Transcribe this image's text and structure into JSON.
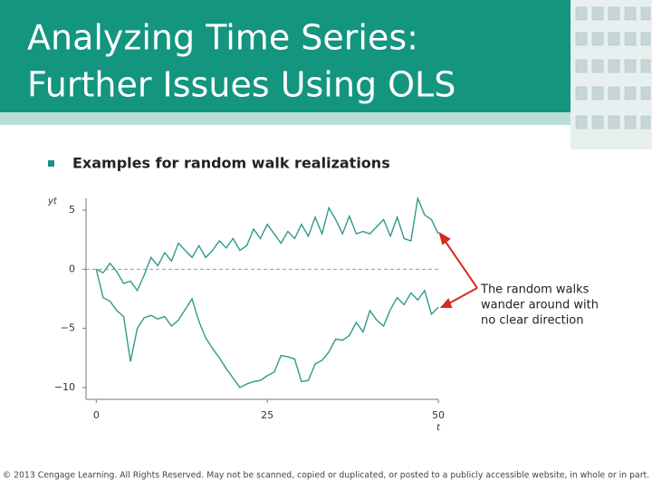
{
  "title": [
    "Analyzing Time Series:",
    "Further Issues Using OLS"
  ],
  "bullet": "Examples for random walk realizations",
  "chart_data": {
    "type": "line",
    "y_label": "yt",
    "x_label": "t",
    "x": [
      0,
      1,
      2,
      3,
      4,
      5,
      6,
      7,
      8,
      9,
      10,
      11,
      12,
      13,
      14,
      15,
      16,
      17,
      18,
      19,
      20,
      21,
      22,
      23,
      24,
      25,
      26,
      27,
      28,
      29,
      30,
      31,
      32,
      33,
      34,
      35,
      36,
      37,
      38,
      39,
      40,
      41,
      42,
      43,
      44,
      45,
      46,
      47,
      48,
      49,
      50
    ],
    "series": [
      {
        "color": "#2f9a8c",
        "values": [
          0,
          -0.3,
          0.5,
          -0.2,
          -1.2,
          -1.0,
          -1.8,
          -0.5,
          1.0,
          0.3,
          1.4,
          0.7,
          2.2,
          1.6,
          1.0,
          2.0,
          1.0,
          1.6,
          2.4,
          1.8,
          2.6,
          1.6,
          2.0,
          3.4,
          2.6,
          3.8,
          3.0,
          2.2,
          3.2,
          2.6,
          3.8,
          2.8,
          4.4,
          3.0,
          5.2,
          4.2,
          3.0,
          4.5,
          3.0,
          3.2,
          3.0,
          3.6,
          4.2,
          2.8,
          4.4,
          2.6,
          2.4,
          6.0,
          4.6,
          4.2,
          3.0
        ]
      },
      {
        "color": "#2f9a8c",
        "values": [
          0,
          -2.4,
          -2.7,
          -3.5,
          -4.0,
          -7.8,
          -5.0,
          -4.1,
          -3.9,
          -4.2,
          -4.0,
          -4.8,
          -4.3,
          -3.4,
          -2.5,
          -4.4,
          -5.8,
          -6.7,
          -7.5,
          -8.4,
          -9.2,
          -10.0,
          -9.7,
          -9.5,
          -9.4,
          -9.0,
          -8.7,
          -7.3,
          -7.4,
          -7.6,
          -9.5,
          -9.4,
          -8.0,
          -7.7,
          -7.0,
          -5.9,
          -6.0,
          -5.6,
          -4.5,
          -5.3,
          -3.5,
          -4.3,
          -4.8,
          -3.4,
          -2.4,
          -3.0,
          -2.0,
          -2.6,
          -1.8,
          -3.8,
          -3.2
        ]
      }
    ],
    "xlim": [
      -1.5,
      50
    ],
    "ylim": [
      -11,
      6
    ],
    "xticks": [
      0,
      25,
      50
    ],
    "yticks": [
      5,
      0,
      {
        "value": -5,
        "label": "−5"
      },
      {
        "value": -10,
        "label": "−10"
      }
    ],
    "reference_line": 0
  },
  "annotation": [
    "The random walks",
    "wander around with",
    "no clear direction"
  ],
  "footer": "© 2013 Cengage Learning. All Rights Reserved. May not be scanned, copied or duplicated, or posted to a publicly accessible website, in whole or in part."
}
